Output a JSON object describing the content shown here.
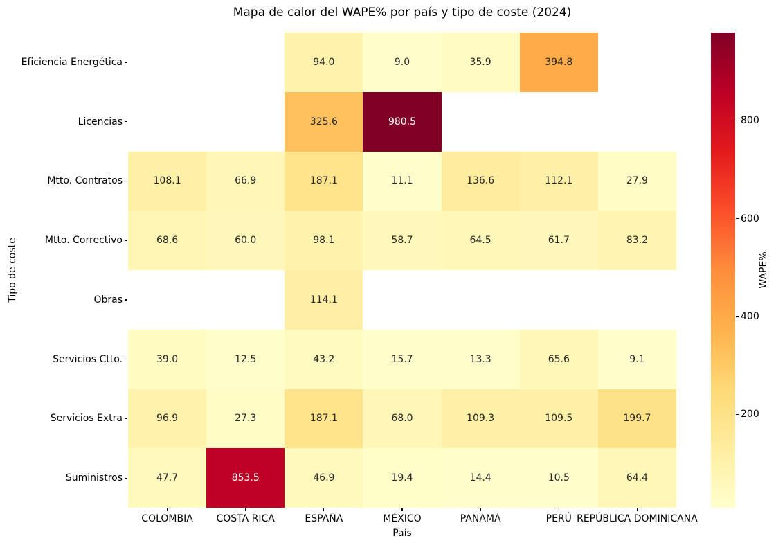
{
  "chart_data": {
    "type": "heatmap",
    "title": "Mapa de calor del WAPE% por país y tipo de coste (2024)",
    "xlabel": "País",
    "ylabel": "Tipo de coste",
    "columns": [
      "COLOMBIA",
      "COSTA RICA",
      "ESPAÑA",
      "MÉXICO",
      "PANAMÁ",
      "PERÚ",
      "REPÚBLICA DOMINICANA"
    ],
    "rows": [
      "Eficiencia Energética",
      "Licencias",
      "Mtto. Contratos",
      "Mtto. Correctivo",
      "Obras",
      "Servicios Ctto.",
      "Servicios Extra",
      "Suministros"
    ],
    "values": [
      [
        null,
        null,
        94.0,
        9.0,
        35.9,
        394.8,
        null
      ],
      [
        null,
        null,
        325.6,
        980.5,
        null,
        null,
        null
      ],
      [
        108.1,
        66.9,
        187.1,
        11.1,
        136.6,
        112.1,
        27.9
      ],
      [
        68.6,
        60.0,
        98.1,
        58.7,
        64.5,
        61.7,
        83.2
      ],
      [
        null,
        null,
        114.1,
        null,
        null,
        null,
        null
      ],
      [
        39.0,
        12.5,
        43.2,
        15.7,
        13.3,
        65.6,
        9.1
      ],
      [
        96.9,
        27.3,
        187.1,
        68.0,
        109.3,
        109.5,
        199.7
      ],
      [
        47.7,
        853.5,
        46.9,
        19.4,
        14.4,
        10.5,
        64.4
      ]
    ],
    "annotation_decimals": 1,
    "grid": false,
    "colorbar": {
      "label": "WAPE%",
      "ticks": [
        200,
        400,
        600,
        800
      ],
      "vmin": 9.0,
      "vmax": 980.5,
      "colormap": "YlOrRd",
      "stops": [
        "#ffffcc",
        "#ffeda0",
        "#fed976",
        "#feb24c",
        "#fd8d3c",
        "#fc4e2a",
        "#e31a1c",
        "#bd0026",
        "#800026"
      ]
    },
    "colors": {
      "annotation_dark": "#262626",
      "annotation_light": "#ffffff",
      "empty_cell": "#ffffff",
      "tick_color": "#000000"
    }
  }
}
